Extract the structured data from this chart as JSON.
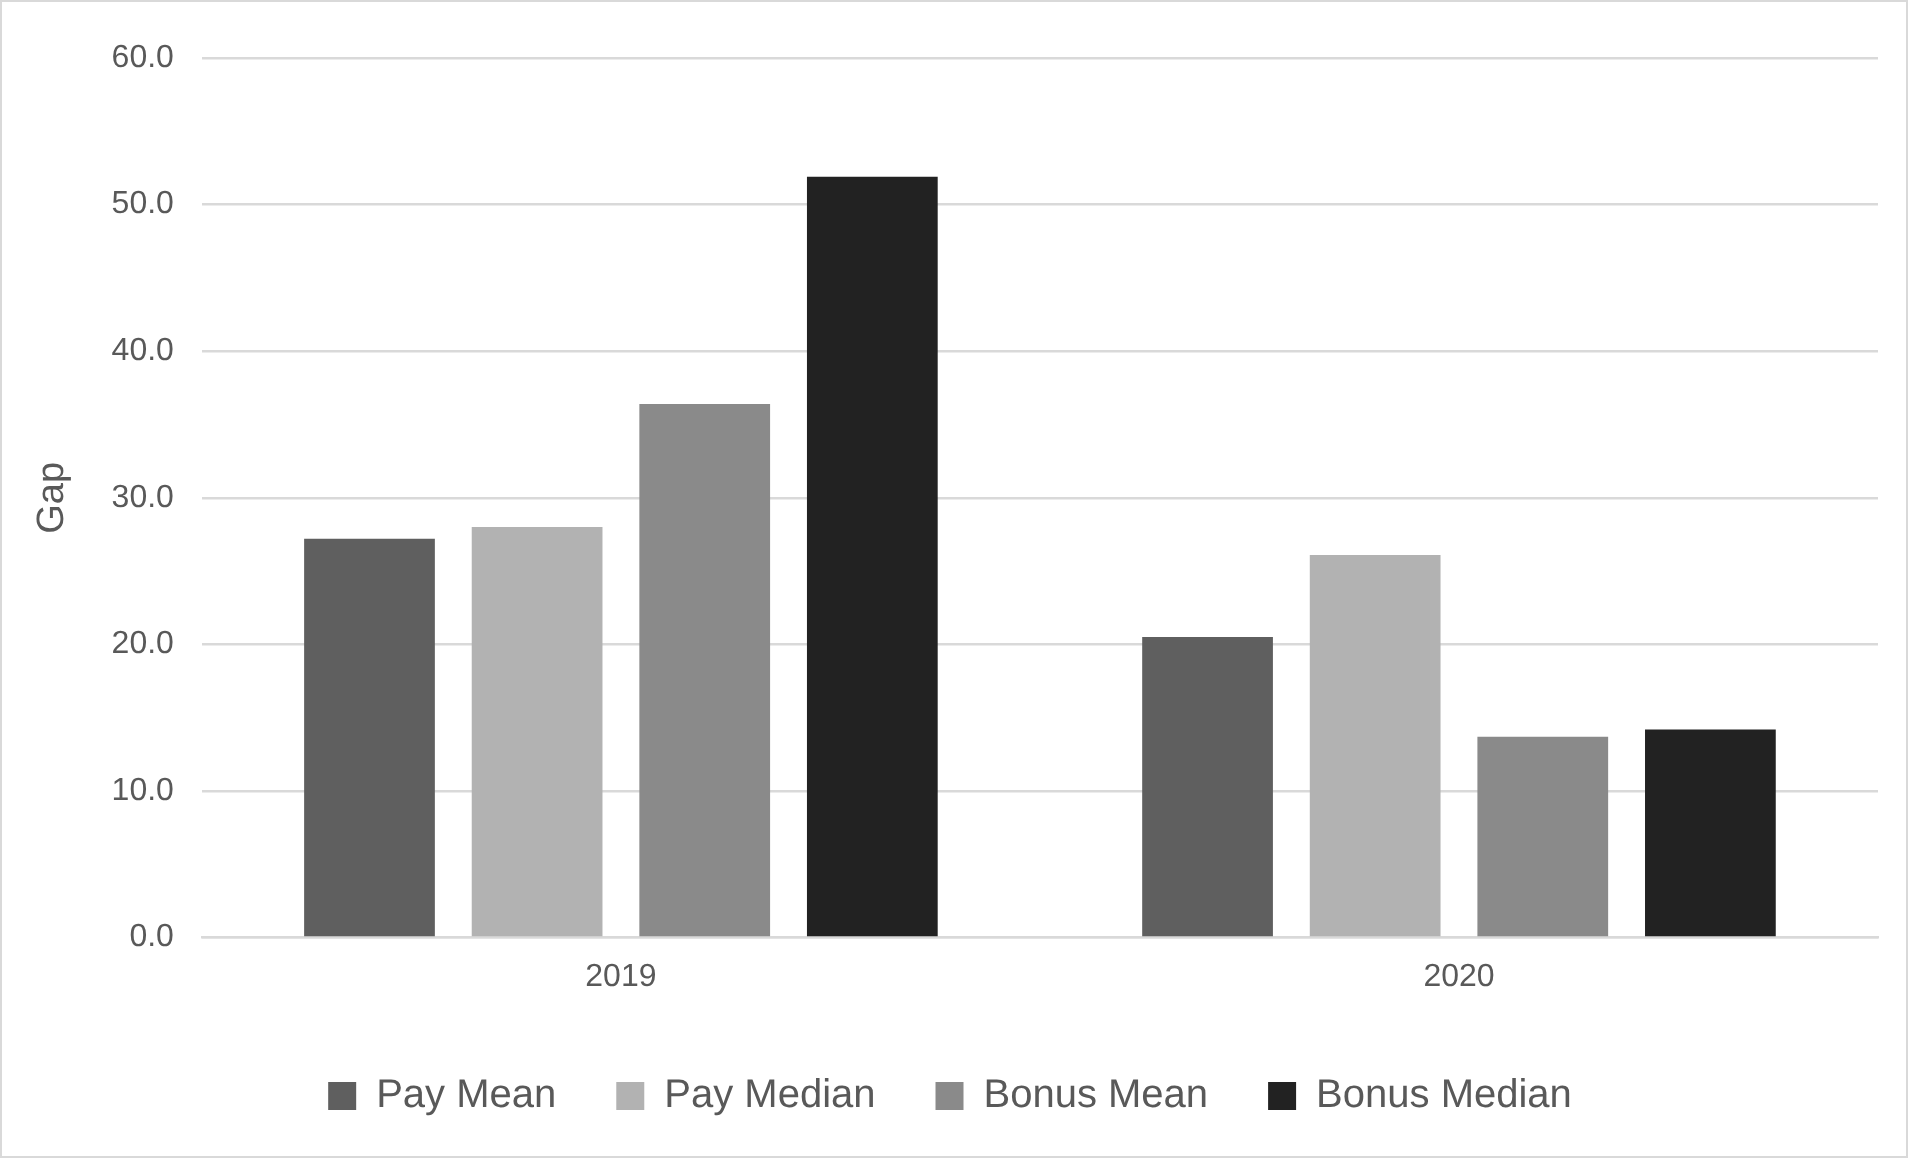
{
  "chart_data": {
    "type": "bar",
    "ylabel": "Gap",
    "categories": [
      "2019",
      "2020"
    ],
    "series": [
      {
        "name": "Pay Mean",
        "color": "#5f5f5f",
        "values": [
          27.2,
          20.5
        ]
      },
      {
        "name": "Pay Median",
        "color": "#b2b2b2",
        "values": [
          28.0,
          26.1
        ]
      },
      {
        "name": "Bonus Mean",
        "color": "#8a8a8a",
        "values": [
          36.4,
          13.7
        ]
      },
      {
        "name": "Bonus Median",
        "color": "#222222",
        "values": [
          51.9,
          14.2
        ]
      }
    ],
    "ylim": [
      0,
      60
    ],
    "yticks": [
      {
        "value": 0,
        "label": "0.0"
      },
      {
        "value": 10,
        "label": "10.0"
      },
      {
        "value": 20,
        "label": "20.0"
      },
      {
        "value": 30,
        "label": "30.0"
      },
      {
        "value": 40,
        "label": "40.0"
      },
      {
        "value": 50,
        "label": "50.0"
      },
      {
        "value": 60,
        "label": "60.0"
      }
    ],
    "grid": "y",
    "legend": "bottom"
  }
}
